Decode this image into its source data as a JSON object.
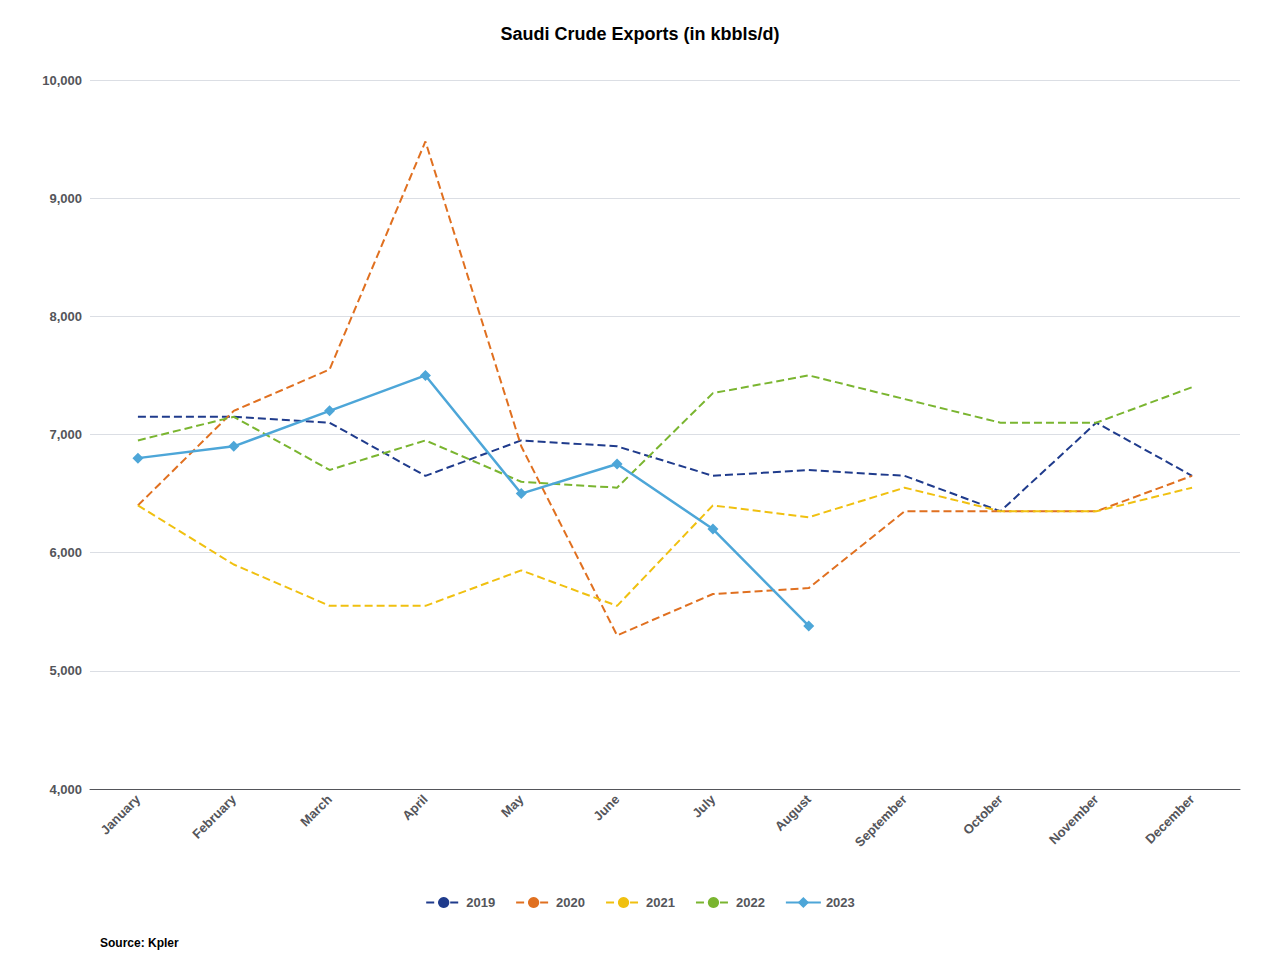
{
  "chart_data": {
    "type": "line",
    "title": "Saudi Crude Exports (in kbbls/d)",
    "categories": [
      "January",
      "February",
      "March",
      "April",
      "May",
      "June",
      "July",
      "August",
      "September",
      "October",
      "November",
      "December"
    ],
    "series": [
      {
        "name": "2019",
        "color": "#1f3b8c",
        "line_style": "dashed",
        "values": [
          7150,
          7150,
          7100,
          6650,
          6950,
          6900,
          6650,
          6700,
          6650,
          6350,
          7100,
          6650
        ]
      },
      {
        "name": "2020",
        "color": "#e07020",
        "line_style": "dashed",
        "values": [
          6400,
          7200,
          7550,
          9480,
          6900,
          5300,
          5650,
          5700,
          6350,
          6350,
          6350,
          6650
        ]
      },
      {
        "name": "2021",
        "color": "#f0c010",
        "line_style": "dashed",
        "values": [
          6400,
          5900,
          5550,
          5550,
          5850,
          5550,
          6400,
          6300,
          6550,
          6350,
          6350,
          6550
        ]
      },
      {
        "name": "2022",
        "color": "#7ab530",
        "line_style": "dashed",
        "values": [
          6950,
          7150,
          6700,
          6950,
          6600,
          6550,
          7350,
          7500,
          7300,
          7100,
          7100,
          7400
        ]
      },
      {
        "name": "2023",
        "color": "#4da6d8",
        "line_style": "solid",
        "marker": "diamond",
        "values": [
          6800,
          6900,
          7200,
          7500,
          6500,
          6750,
          6200,
          5380,
          null,
          null,
          null,
          null
        ]
      }
    ],
    "ylim": [
      4000,
      10000
    ],
    "yticks": [
      {
        "value": 4000,
        "label": "4,000"
      },
      {
        "value": 5000,
        "label": "5,000"
      },
      {
        "value": 6000,
        "label": "6,000"
      },
      {
        "value": 7000,
        "label": "7,000"
      },
      {
        "value": 8000,
        "label": "8,000"
      },
      {
        "value": 9000,
        "label": "9,000"
      },
      {
        "value": 10000,
        "label": "10,000"
      }
    ],
    "grid": true,
    "legend": "bottom",
    "annotations": [
      "Source: Kpler"
    ]
  }
}
